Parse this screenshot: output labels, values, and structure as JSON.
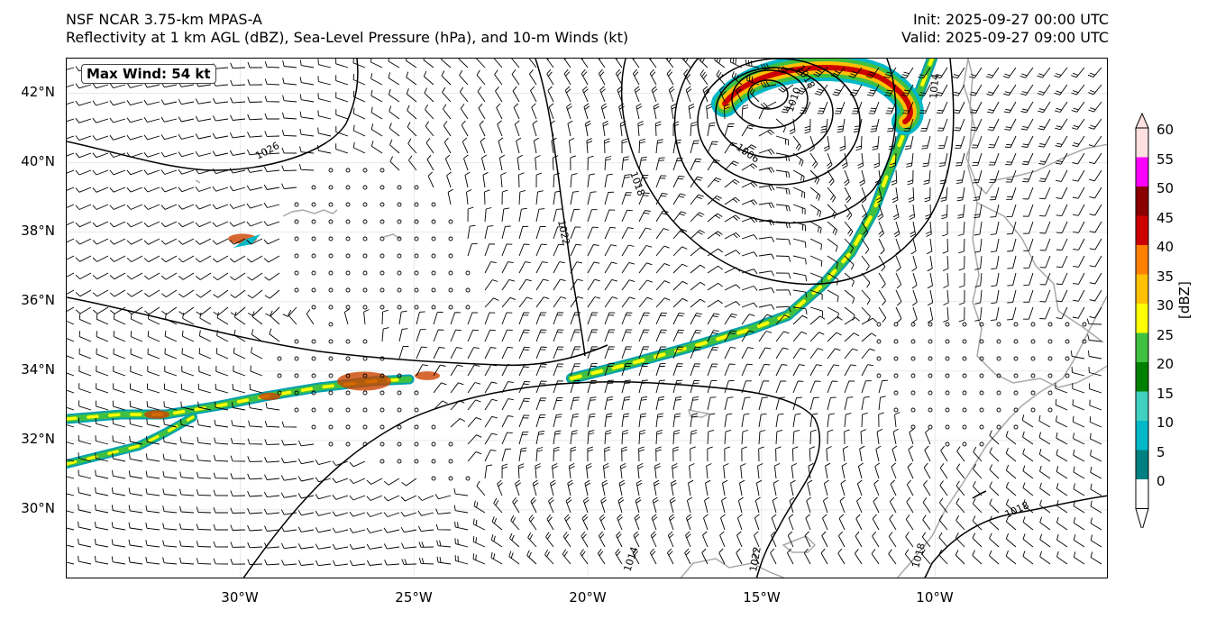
{
  "title": {
    "left_line1": "NSF NCAR 3.75-km MPAS-A",
    "left_line2": "Reflectivity at 1 km AGL (dBZ), Sea-Level Pressure (hPa), and 10-m Winds (kt)",
    "right_line1": "Init: 2025-09-27 00:00 UTC",
    "right_line2": "Valid: 2025-09-27 09:00 UTC"
  },
  "annotation": {
    "max_wind": "Max Wind: 54 kt"
  },
  "axes": {
    "lon_range": [
      -35,
      -5
    ],
    "lat_range": [
      28,
      43
    ],
    "lat_ticks": [
      "42°N",
      "40°N",
      "38°N",
      "36°N",
      "34°N",
      "32°N",
      "30°N"
    ],
    "lat_values": [
      42,
      40,
      38,
      36,
      34,
      32,
      30
    ],
    "lon_ticks": [
      "30°W",
      "25°W",
      "20°W",
      "15°W",
      "10°W"
    ],
    "lon_values": [
      -30,
      -25,
      -20,
      -15,
      -10
    ]
  },
  "isobars": {
    "labels": [
      "1026",
      "1018",
      "1022",
      "1010",
      "1006",
      "1018",
      "1014",
      "1022",
      "1014",
      "1018",
      "1018"
    ],
    "cyclone_center": {
      "lon": -14.7,
      "lat": 41.6
    },
    "anticyclone_center": {
      "lon": -23.0,
      "lat": 30.5
    }
  },
  "colorbar": {
    "label": "[dBZ]",
    "ticks": [
      "60",
      "55",
      "50",
      "45",
      "40",
      "35",
      "30",
      "25",
      "20",
      "15",
      "10",
      "5",
      "0"
    ],
    "colors": [
      "#ffe0e0",
      "#ff00ff",
      "#8b0000",
      "#cc0000",
      "#ff8000",
      "#ffc000",
      "#ffff00",
      "#40c040",
      "#008000",
      "#40d0c0",
      "#00b8c8",
      "#008080",
      "#ffffff"
    ]
  }
}
